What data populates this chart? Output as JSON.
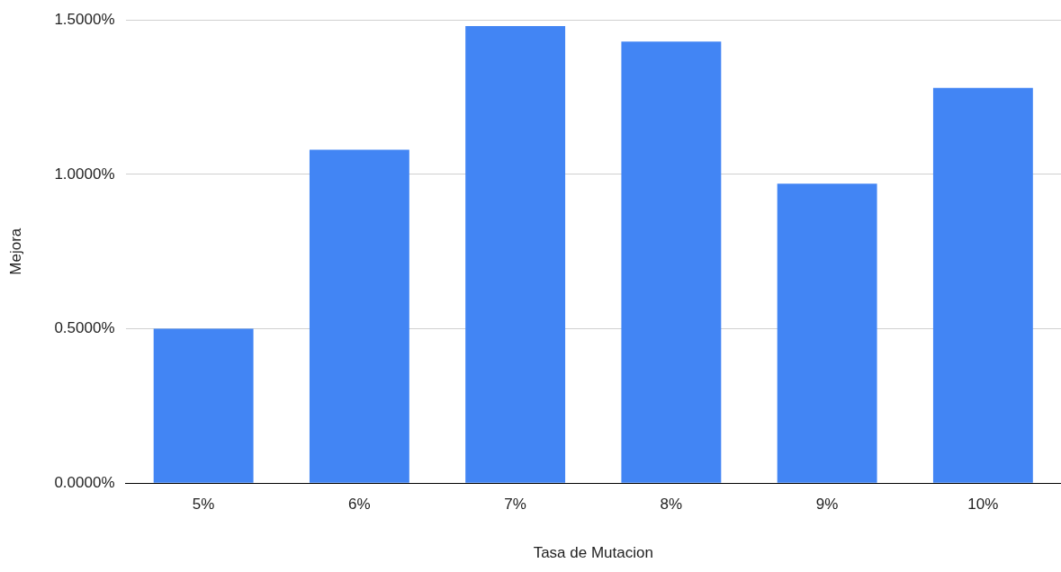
{
  "chart_data": {
    "type": "bar",
    "xlabel": "Tasa de Mutacion",
    "ylabel": "Mejora",
    "categories": [
      "5%",
      "6%",
      "7%",
      "8%",
      "9%",
      "10%"
    ],
    "values": [
      0.5,
      1.08,
      1.48,
      1.43,
      0.97,
      1.28
    ],
    "color": "#4285f4",
    "ylim": [
      0,
      1.5
    ],
    "yticks": [
      {
        "value": 0,
        "label": "0.0000%"
      },
      {
        "value": 0.5,
        "label": "0.5000%"
      },
      {
        "value": 1,
        "label": "1.0000%"
      },
      {
        "value": 1.5,
        "label": "1.5000%"
      }
    ],
    "grid": "y",
    "legend": false
  }
}
